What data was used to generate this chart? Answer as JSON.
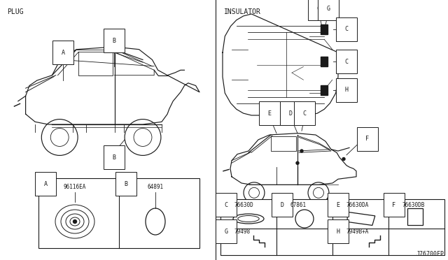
{
  "bg_color": "#ffffff",
  "line_color": "#1a1a1a",
  "section_left_label": "PLUG",
  "section_right_label": "INSULATOR",
  "part_number_bottom_right": "J76700FP",
  "left_parts": [
    {
      "label": "A",
      "part_no": "96116EA"
    },
    {
      "label": "B",
      "part_no": "64891"
    }
  ],
  "right_parts_row1": [
    {
      "label": "C",
      "part_no": "76630D"
    },
    {
      "label": "D",
      "part_no": "67861"
    },
    {
      "label": "E",
      "part_no": "76630DA"
    },
    {
      "label": "F",
      "part_no": "76630DB"
    }
  ],
  "right_parts_row2": [
    {
      "label": "G",
      "part_no": "79498"
    },
    {
      "label": "H",
      "part_no": "7949B+A"
    }
  ]
}
